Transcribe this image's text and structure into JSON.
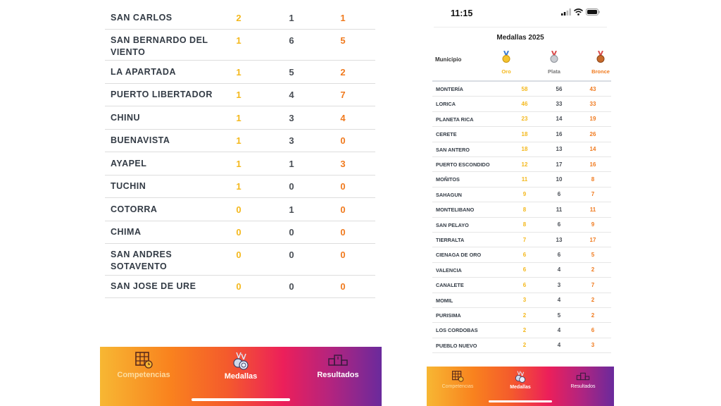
{
  "left_screen": {
    "rows": [
      {
        "name": "SAN CARLOS",
        "oro": "2",
        "plata": "1",
        "bronce": "1"
      },
      {
        "name": "SAN BERNARDO DEL VIENTO",
        "oro": "1",
        "plata": "6",
        "bronce": "5"
      },
      {
        "name": "LA APARTADA",
        "oro": "1",
        "plata": "5",
        "bronce": "2"
      },
      {
        "name": "PUERTO LIBERTADOR",
        "oro": "1",
        "plata": "4",
        "bronce": "7"
      },
      {
        "name": "CHINU",
        "oro": "1",
        "plata": "3",
        "bronce": "4"
      },
      {
        "name": "BUENAVISTA",
        "oro": "1",
        "plata": "3",
        "bronce": "0"
      },
      {
        "name": "AYAPEL",
        "oro": "1",
        "plata": "1",
        "bronce": "3"
      },
      {
        "name": "TUCHIN",
        "oro": "1",
        "plata": "0",
        "bronce": "0"
      },
      {
        "name": "COTORRA",
        "oro": "0",
        "plata": "1",
        "bronce": "0"
      },
      {
        "name": "CHIMA",
        "oro": "0",
        "plata": "0",
        "bronce": "0"
      },
      {
        "name": "SAN ANDRES SOTAVENTO",
        "oro": "0",
        "plata": "0",
        "bronce": "0"
      },
      {
        "name": "SAN JOSE DE URE",
        "oro": "0",
        "plata": "0",
        "bronce": "0"
      }
    ]
  },
  "right_screen": {
    "status_time": "11:15",
    "title": "Medallas 2025",
    "headers": {
      "municipio": "Municipio",
      "oro": "Oro",
      "plata": "Plata",
      "bronce": "Bronce"
    },
    "rows": [
      {
        "name": "MONTERÍA",
        "oro": "58",
        "plata": "56",
        "bronce": "43"
      },
      {
        "name": "LORICA",
        "oro": "46",
        "plata": "33",
        "bronce": "33"
      },
      {
        "name": "PLANETA RICA",
        "oro": "23",
        "plata": "14",
        "bronce": "19"
      },
      {
        "name": "CERETE",
        "oro": "18",
        "plata": "16",
        "bronce": "26"
      },
      {
        "name": "SAN ANTERO",
        "oro": "18",
        "plata": "13",
        "bronce": "14"
      },
      {
        "name": "PUERTO ESCONDIDO",
        "oro": "12",
        "plata": "17",
        "bronce": "16"
      },
      {
        "name": "MOÑITOS",
        "oro": "11",
        "plata": "10",
        "bronce": "8"
      },
      {
        "name": "SAHAGUN",
        "oro": "9",
        "plata": "6",
        "bronce": "7"
      },
      {
        "name": "MONTELIBANO",
        "oro": "8",
        "plata": "11",
        "bronce": "11"
      },
      {
        "name": "SAN PELAYO",
        "oro": "8",
        "plata": "6",
        "bronce": "9"
      },
      {
        "name": "TIERRALTA",
        "oro": "7",
        "plata": "13",
        "bronce": "17"
      },
      {
        "name": "CIENAGA DE ORO",
        "oro": "6",
        "plata": "6",
        "bronce": "5"
      },
      {
        "name": "VALENCIA",
        "oro": "6",
        "plata": "4",
        "bronce": "2"
      },
      {
        "name": "CANALETE",
        "oro": "6",
        "plata": "3",
        "bronce": "7"
      },
      {
        "name": "MOMIL",
        "oro": "3",
        "plata": "4",
        "bronce": "2"
      },
      {
        "name": "PURISIMA",
        "oro": "2",
        "plata": "5",
        "bronce": "2"
      },
      {
        "name": "LOS CORDOBAS",
        "oro": "2",
        "plata": "4",
        "bronce": "6"
      },
      {
        "name": "PUEBLO NUEVO",
        "oro": "2",
        "plata": "4",
        "bronce": "3"
      }
    ]
  },
  "nav": {
    "competencias": "Competencias",
    "medallas": "Medallas",
    "resultados": "Resultados"
  },
  "colors": {
    "oro": "#f4b81c",
    "plata": "#4a4f56",
    "bronce": "#f07a1e"
  }
}
